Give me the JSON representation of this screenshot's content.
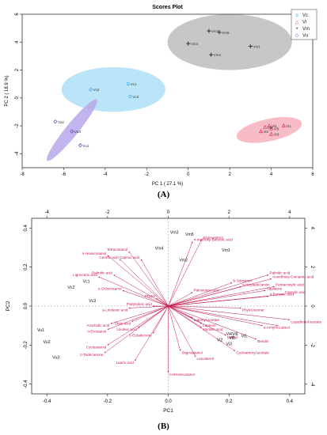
{
  "chart_data": [
    {
      "type": "scatter",
      "title": "Scores Plot",
      "xlabel": "PC 1 ( 27.1 %)",
      "ylabel": "PC 2 ( 18.9 %)",
      "xlim": [
        -8,
        6
      ],
      "ylim": [
        -5,
        6
      ],
      "xticks": [
        -8,
        -6,
        -4,
        -2,
        0,
        2,
        4,
        6
      ],
      "yticks": [
        -4,
        -2,
        0,
        2,
        4,
        6
      ],
      "legend_position": "top-right",
      "series": [
        {
          "name": "Vc",
          "marker": "o",
          "color": "#33aaee",
          "ellipse": {
            "cx": -3.6,
            "cy": 0.6,
            "rx": 2.5,
            "ry": 1.6,
            "angle": 0,
            "fill": "#aee0f7"
          },
          "points": [
            {
              "label": "Vc1",
              "x": -2.9,
              "y": 1.0
            },
            {
              "label": "Vc2",
              "x": -4.7,
              "y": 0.6
            },
            {
              "label": "Vc3",
              "x": -2.8,
              "y": 0.1
            }
          ]
        },
        {
          "name": "Vi",
          "marker": "^",
          "color": "#e0305a",
          "ellipse": {
            "cx": 3.9,
            "cy": -2.3,
            "rx": 1.6,
            "ry": 0.8,
            "angle": 12,
            "fill": "#f7b0bc"
          },
          "points": [
            {
              "label": "Vi1",
              "x": 4.6,
              "y": -2.0
            },
            {
              "label": "Vi2",
              "x": 3.5,
              "y": -2.4
            },
            {
              "label": "Vi3",
              "x": 4.0,
              "y": -2.6
            },
            {
              "label": "Vi4",
              "x": 3.9,
              "y": -2.0
            },
            {
              "label": "Vi5",
              "x": 4.0,
              "y": -2.2
            },
            {
              "label": "Vi6",
              "x": 3.7,
              "y": -2.1
            }
          ]
        },
        {
          "name": "Vm",
          "marker": "+",
          "color": "#222222",
          "ellipse": {
            "cx": 2.0,
            "cy": 4.0,
            "rx": 3.0,
            "ry": 2.0,
            "angle": 0,
            "fill": "#bdbdbd"
          },
          "points": [
            {
              "label": "Vm1",
              "x": 3.0,
              "y": 3.7
            },
            {
              "label": "Vm2",
              "x": 1.1,
              "y": 3.1
            },
            {
              "label": "Vm3",
              "x": 1.0,
              "y": 4.8
            },
            {
              "label": "Vm4",
              "x": 0.0,
              "y": 3.9
            },
            {
              "label": "Vm5",
              "x": 1.5,
              "y": 4.7
            }
          ]
        },
        {
          "name": "Vu",
          "marker": "◇",
          "color": "#5b3fb8",
          "ellipse": {
            "cx": -5.6,
            "cy": -2.3,
            "rx": 1.9,
            "ry": 0.45,
            "angle": 51,
            "fill": "#b7a8ea"
          },
          "points": [
            {
              "label": "Vu1",
              "x": -5.2,
              "y": -3.4
            },
            {
              "label": "Vu2",
              "x": -6.4,
              "y": -1.7
            },
            {
              "label": "Vu3",
              "x": -5.6,
              "y": -2.4
            }
          ]
        }
      ]
    },
    {
      "type": "biplot",
      "xlabel": "PC1",
      "ylabel": "PC2",
      "xlim": [
        -0.45,
        0.45
      ],
      "ylim": [
        -0.45,
        0.45
      ],
      "xticks": [
        -0.4,
        -0.2,
        0.0,
        0.2,
        0.4
      ],
      "yticks": [
        -0.4,
        -0.2,
        0.0,
        0.2,
        0.4
      ],
      "top_xticks": [
        -4,
        -2,
        0,
        2,
        4
      ],
      "right_yticks": [
        -4,
        -2,
        0,
        2,
        4
      ],
      "sample_color": "#111111",
      "arrow_color": "#c8174a",
      "samples": [
        {
          "label": "Vm3",
          "x": 0.02,
          "y": 0.37
        },
        {
          "label": "Vm5",
          "x": 0.07,
          "y": 0.36
        },
        {
          "label": "Vm4",
          "x": -0.03,
          "y": 0.29
        },
        {
          "label": "Vm1",
          "x": 0.19,
          "y": 0.28
        },
        {
          "label": "Vm2",
          "x": 0.05,
          "y": 0.23
        },
        {
          "label": "Vc1",
          "x": -0.27,
          "y": 0.12
        },
        {
          "label": "Vc2",
          "x": -0.32,
          "y": 0.09
        },
        {
          "label": "Vc3",
          "x": -0.25,
          "y": 0.02
        },
        {
          "label": "Vi1",
          "x": 0.25,
          "y": -0.16
        },
        {
          "label": "Vi2",
          "x": 0.17,
          "y": -0.18
        },
        {
          "label": "Vi3",
          "x": 0.2,
          "y": -0.2
        },
        {
          "label": "Vi4",
          "x": 0.2,
          "y": -0.15
        },
        {
          "label": "Vi5",
          "x": 0.21,
          "y": -0.17
        },
        {
          "label": "Vi6",
          "x": 0.22,
          "y": -0.15
        },
        {
          "label": "Vu1",
          "x": -0.42,
          "y": -0.13
        },
        {
          "label": "Vu2",
          "x": -0.4,
          "y": -0.19
        },
        {
          "label": "Vu3",
          "x": -0.37,
          "y": -0.27
        }
      ],
      "loadings": [
        {
          "label": "Stigmasterol",
          "x": 0.11,
          "y": 0.34
        },
        {
          "label": "4-methoxy-Benzoic acid",
          "x": 0.08,
          "y": 0.33
        },
        {
          "label": "Tetracosanol",
          "x": -0.13,
          "y": 0.28
        },
        {
          "label": "n-Hexacosanol",
          "x": -0.2,
          "y": 0.26
        },
        {
          "label": "Caproic acid",
          "x": -0.09,
          "y": 0.24
        },
        {
          "label": "Cerotic acid",
          "x": -0.16,
          "y": 0.24
        },
        {
          "label": "Palmitic acid",
          "x": -0.18,
          "y": 0.16
        },
        {
          "label": "Lignoceric acid",
          "x": -0.23,
          "y": 0.15
        },
        {
          "label": "n-Octacosanol",
          "x": -0.15,
          "y": 0.08
        },
        {
          "label": "a-Linolenic acid",
          "x": -0.13,
          "y": -0.01
        },
        {
          "label": "Phytol",
          "x": -0.04,
          "y": 0.04
        },
        {
          "label": "Palmitoleic acid",
          "x": -0.05,
          "y": 0.0
        },
        {
          "label": "b-Sitosterol",
          "x": 0.21,
          "y": 0.12
        },
        {
          "label": "n-Heptadecanoic",
          "x": 0.24,
          "y": 0.1
        },
        {
          "label": "Palmitic acid",
          "x": 0.33,
          "y": 0.16
        },
        {
          "label": "4-methoxy-Cinnamic acid",
          "x": 0.34,
          "y": 0.14
        },
        {
          "label": "Pentacosylic acid",
          "x": 0.35,
          "y": 0.1
        },
        {
          "label": "Squalene",
          "x": 0.32,
          "y": 0.08
        },
        {
          "label": "Caprylic acid",
          "x": 0.38,
          "y": 0.06
        },
        {
          "label": "4-Benzoic acid",
          "x": 0.33,
          "y": 0.05
        },
        {
          "label": "Palmitoleic acid",
          "x": 0.08,
          "y": 0.07
        },
        {
          "label": "Phytol isomer",
          "x": 0.24,
          "y": -0.01
        },
        {
          "label": "Lupenyl acetate",
          "x": 0.08,
          "y": -0.06
        },
        {
          "label": "Lupadienol acetate",
          "x": 0.4,
          "y": -0.07
        },
        {
          "label": "Lupenol",
          "x": 0.11,
          "y": -0.09
        },
        {
          "label": "Myristic acid",
          "x": 0.11,
          "y": -0.11
        },
        {
          "label": "a-Amyrin",
          "x": 0.31,
          "y": -0.1
        },
        {
          "label": "Lupeol",
          "x": 0.36,
          "y": -0.1
        },
        {
          "label": "Methyl",
          "x": 0.19,
          "y": -0.15
        },
        {
          "label": "Betulin",
          "x": 0.29,
          "y": -0.17
        },
        {
          "label": "Cycloartenyl acetate",
          "x": 0.22,
          "y": -0.23
        },
        {
          "label": "Stigmastanol",
          "x": 0.04,
          "y": -0.23
        },
        {
          "label": "Lanosterol",
          "x": 0.09,
          "y": -0.26
        },
        {
          "label": "Arachidic acid",
          "x": -0.19,
          "y": -0.09
        },
        {
          "label": "n-Eicosanol",
          "x": -0.2,
          "y": -0.12
        },
        {
          "label": "Oleic acid",
          "x": -0.12,
          "y": -0.08
        },
        {
          "label": "Linoleic acid",
          "x": -0.1,
          "y": -0.11
        },
        {
          "label": "Cycloartenol",
          "x": -0.2,
          "y": -0.2
        },
        {
          "label": "2-Tridecanone",
          "x": -0.21,
          "y": -0.24
        },
        {
          "label": "Lauric acid",
          "x": -0.11,
          "y": -0.28
        },
        {
          "label": "1-Octadecene",
          "x": -0.05,
          "y": -0.14
        },
        {
          "label": "n-Heneicosanol",
          "x": 0.0,
          "y": -0.34
        }
      ]
    }
  ],
  "captions": [
    "(A)",
    "(B)"
  ]
}
